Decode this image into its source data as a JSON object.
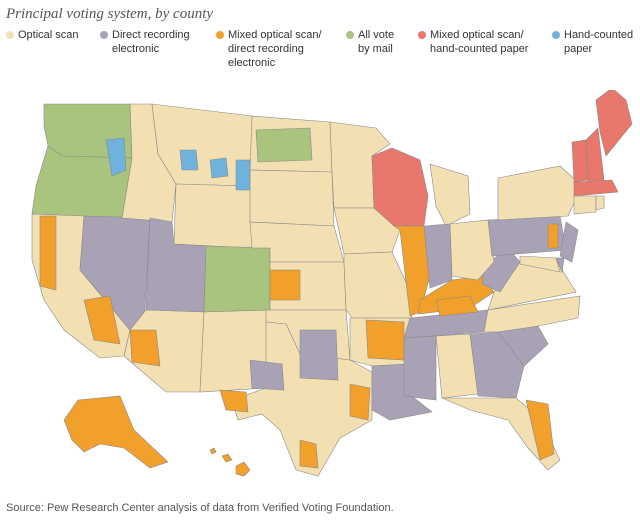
{
  "title": "Principal voting system, by county",
  "legend": [
    {
      "id": "optical",
      "lines": [
        "Optical scan"
      ],
      "color": "#f3e0b2"
    },
    {
      "id": "dre",
      "lines": [
        "Direct recording",
        "electronic"
      ],
      "color": "#a9a2b6"
    },
    {
      "id": "mixed_dre",
      "lines": [
        "Mixed optical scan/",
        "direct recording",
        "electronic"
      ],
      "color": "#f0a02b"
    },
    {
      "id": "mail",
      "lines": [
        "All vote",
        "by mail"
      ],
      "color": "#a8c47e"
    },
    {
      "id": "mixed_hand",
      "lines": [
        "Mixed optical scan/",
        "hand-counted paper"
      ],
      "color": "#e8786c"
    },
    {
      "id": "hand",
      "lines": [
        "Hand-counted",
        "paper"
      ],
      "color": "#6fb3dc"
    }
  ],
  "source": "Source: Pew Research Center analysis of data from Verified Voting Foundation.",
  "map": {
    "states": [
      {
        "name": "washington",
        "system": "mail"
      },
      {
        "name": "oregon",
        "system": "mail"
      },
      {
        "name": "california",
        "system": "optical"
      },
      {
        "name": "nevada",
        "system": "dre"
      },
      {
        "name": "idaho",
        "system": "optical"
      },
      {
        "name": "montana",
        "system": "optical"
      },
      {
        "name": "wyoming",
        "system": "optical"
      },
      {
        "name": "utah",
        "system": "dre"
      },
      {
        "name": "arizona",
        "system": "optical"
      },
      {
        "name": "colorado",
        "system": "mail"
      },
      {
        "name": "new-mexico",
        "system": "optical"
      },
      {
        "name": "north-dakota",
        "system": "optical"
      },
      {
        "name": "south-dakota",
        "system": "optical"
      },
      {
        "name": "nebraska",
        "system": "optical"
      },
      {
        "name": "kansas",
        "system": "optical"
      },
      {
        "name": "oklahoma",
        "system": "optical"
      },
      {
        "name": "texas",
        "system": "optical"
      },
      {
        "name": "minnesota",
        "system": "optical"
      },
      {
        "name": "iowa",
        "system": "optical"
      },
      {
        "name": "missouri",
        "system": "optical"
      },
      {
        "name": "arkansas",
        "system": "optical"
      },
      {
        "name": "louisiana",
        "system": "dre"
      },
      {
        "name": "wisconsin",
        "system": "mixed_hand"
      },
      {
        "name": "illinois",
        "system": "mixed_dre"
      },
      {
        "name": "michigan",
        "system": "optical"
      },
      {
        "name": "indiana",
        "system": "dre"
      },
      {
        "name": "kentucky",
        "system": "mixed_dre"
      },
      {
        "name": "tennessee",
        "system": "dre"
      },
      {
        "name": "mississippi",
        "system": "dre"
      },
      {
        "name": "alabama",
        "system": "optical"
      },
      {
        "name": "georgia",
        "system": "dre"
      },
      {
        "name": "florida",
        "system": "optical"
      },
      {
        "name": "south-carolina",
        "system": "dre"
      },
      {
        "name": "north-carolina",
        "system": "optical"
      },
      {
        "name": "virginia",
        "system": "optical"
      },
      {
        "name": "west-virginia",
        "system": "dre"
      },
      {
        "name": "ohio",
        "system": "optical"
      },
      {
        "name": "pennsylvania",
        "system": "dre"
      },
      {
        "name": "new-york",
        "system": "optical"
      },
      {
        "name": "new-jersey",
        "system": "dre"
      },
      {
        "name": "delaware",
        "system": "dre"
      },
      {
        "name": "maryland",
        "system": "optical"
      },
      {
        "name": "vermont",
        "system": "mixed_hand"
      },
      {
        "name": "new-hampshire",
        "system": "mixed_hand"
      },
      {
        "name": "maine",
        "system": "mixed_hand"
      },
      {
        "name": "massachusetts",
        "system": "mixed_hand"
      },
      {
        "name": "connecticut",
        "system": "optical"
      },
      {
        "name": "rhode-island",
        "system": "optical"
      },
      {
        "name": "alaska",
        "system": "mixed_dre"
      },
      {
        "name": "hawaii",
        "system": "mixed_dre"
      }
    ]
  }
}
